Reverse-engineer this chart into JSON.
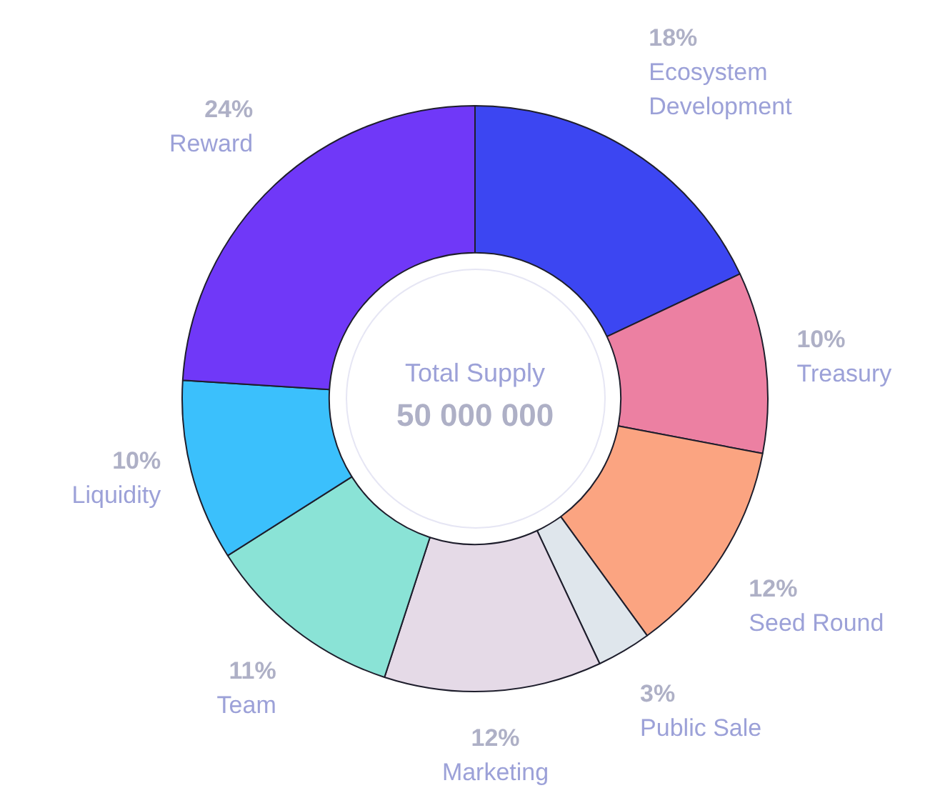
{
  "chart_data": {
    "type": "donut",
    "categories": [
      "Ecosystem Development",
      "Treasury",
      "Seed Round",
      "Public Sale",
      "Marketing",
      "Team",
      "Liquidity",
      "Reward"
    ],
    "values": [
      18,
      10,
      12,
      3,
      12,
      11,
      10,
      24
    ],
    "value_labels": [
      "18%",
      "10%",
      "12%",
      "3%",
      "12%",
      "11%",
      "10%",
      "24%"
    ],
    "colors": [
      "#3c46f2",
      "#ec80a2",
      "#fba481",
      "#dfe6ec",
      "#e5dae7",
      "#8ae3d6",
      "#3bc0fc",
      "#7038f8"
    ],
    "annotations": [
      "Total Supply",
      "50 000 000"
    ],
    "legend": false
  }
}
